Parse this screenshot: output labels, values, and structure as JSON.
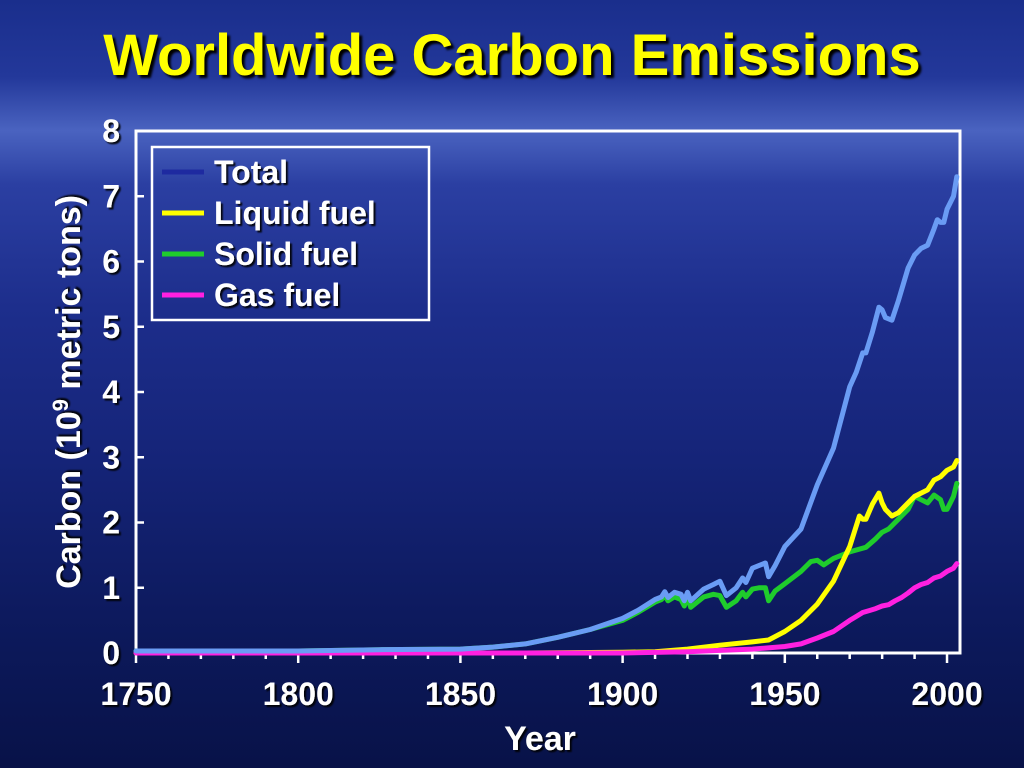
{
  "chart_data": {
    "type": "line",
    "title": "Worldwide Carbon Emissions",
    "xlabel": "Year",
    "ylabel": "Carbon (10",
    "ylabel_sup": "9",
    "ylabel_suffix": " metric tons)",
    "xlim": [
      1750,
      2004
    ],
    "ylim": [
      0,
      8
    ],
    "x_ticks": [
      "1750",
      "1800",
      "1850",
      "1900",
      "1950",
      "2000"
    ],
    "y_ticks": [
      "0",
      "1",
      "2",
      "3",
      "4",
      "5",
      "6",
      "7",
      "8"
    ],
    "grid": false,
    "legend_position": "top-left",
    "series": [
      {
        "name": "Total",
        "color": "#6a9cf4",
        "legend_color": "#1e2aa0",
        "points": [
          [
            1750,
            0.03
          ],
          [
            1800,
            0.03
          ],
          [
            1825,
            0.05
          ],
          [
            1850,
            0.06
          ],
          [
            1860,
            0.09
          ],
          [
            1870,
            0.14
          ],
          [
            1880,
            0.24
          ],
          [
            1890,
            0.36
          ],
          [
            1900,
            0.53
          ],
          [
            1905,
            0.66
          ],
          [
            1910,
            0.82
          ],
          [
            1912,
            0.86
          ],
          [
            1913,
            0.94
          ],
          [
            1914,
            0.85
          ],
          [
            1916,
            0.93
          ],
          [
            1918,
            0.9
          ],
          [
            1919,
            0.8
          ],
          [
            1920,
            0.93
          ],
          [
            1921,
            0.8
          ],
          [
            1925,
            0.98
          ],
          [
            1928,
            1.05
          ],
          [
            1930,
            1.1
          ],
          [
            1932,
            0.88
          ],
          [
            1935,
            1.0
          ],
          [
            1937,
            1.15
          ],
          [
            1938,
            1.08
          ],
          [
            1940,
            1.3
          ],
          [
            1942,
            1.34
          ],
          [
            1944,
            1.38
          ],
          [
            1945,
            1.17
          ],
          [
            1947,
            1.34
          ],
          [
            1950,
            1.63
          ],
          [
            1955,
            1.9
          ],
          [
            1960,
            2.58
          ],
          [
            1965,
            3.14
          ],
          [
            1970,
            4.08
          ],
          [
            1972,
            4.3
          ],
          [
            1974,
            4.6
          ],
          [
            1975,
            4.6
          ],
          [
            1977,
            4.92
          ],
          [
            1979,
            5.3
          ],
          [
            1980,
            5.26
          ],
          [
            1981,
            5.14
          ],
          [
            1983,
            5.1
          ],
          [
            1985,
            5.4
          ],
          [
            1988,
            5.9
          ],
          [
            1990,
            6.1
          ],
          [
            1992,
            6.2
          ],
          [
            1994,
            6.25
          ],
          [
            1996,
            6.5
          ],
          [
            1997,
            6.64
          ],
          [
            1998,
            6.6
          ],
          [
            1999,
            6.6
          ],
          [
            2000,
            6.8
          ],
          [
            2002,
            7.0
          ],
          [
            2003,
            7.3
          ]
        ]
      },
      {
        "name": "Liquid fuel",
        "color": "#ffff00",
        "legend_color": "#ffff00",
        "points": [
          [
            1750,
            0.0
          ],
          [
            1870,
            0.0
          ],
          [
            1900,
            0.01
          ],
          [
            1910,
            0.02
          ],
          [
            1920,
            0.06
          ],
          [
            1930,
            0.12
          ],
          [
            1940,
            0.17
          ],
          [
            1945,
            0.2
          ],
          [
            1950,
            0.33
          ],
          [
            1955,
            0.5
          ],
          [
            1960,
            0.75
          ],
          [
            1965,
            1.1
          ],
          [
            1970,
            1.63
          ],
          [
            1973,
            2.1
          ],
          [
            1974,
            2.05
          ],
          [
            1975,
            2.05
          ],
          [
            1977,
            2.28
          ],
          [
            1979,
            2.45
          ],
          [
            1980,
            2.3
          ],
          [
            1981,
            2.2
          ],
          [
            1983,
            2.1
          ],
          [
            1985,
            2.15
          ],
          [
            1988,
            2.3
          ],
          [
            1990,
            2.4
          ],
          [
            1992,
            2.45
          ],
          [
            1994,
            2.5
          ],
          [
            1996,
            2.65
          ],
          [
            1998,
            2.7
          ],
          [
            2000,
            2.8
          ],
          [
            2002,
            2.85
          ],
          [
            2003,
            2.95
          ]
        ]
      },
      {
        "name": "Solid fuel",
        "color": "#1fcc2c",
        "legend_color": "#1fcc2c",
        "points": [
          [
            1750,
            0.03
          ],
          [
            1800,
            0.03
          ],
          [
            1825,
            0.05
          ],
          [
            1850,
            0.06
          ],
          [
            1860,
            0.09
          ],
          [
            1870,
            0.14
          ],
          [
            1880,
            0.24
          ],
          [
            1890,
            0.36
          ],
          [
            1900,
            0.5
          ],
          [
            1905,
            0.63
          ],
          [
            1910,
            0.78
          ],
          [
            1912,
            0.82
          ],
          [
            1913,
            0.88
          ],
          [
            1914,
            0.8
          ],
          [
            1916,
            0.86
          ],
          [
            1918,
            0.82
          ],
          [
            1919,
            0.72
          ],
          [
            1920,
            0.86
          ],
          [
            1921,
            0.7
          ],
          [
            1925,
            0.86
          ],
          [
            1928,
            0.9
          ],
          [
            1930,
            0.88
          ],
          [
            1932,
            0.7
          ],
          [
            1935,
            0.8
          ],
          [
            1937,
            0.93
          ],
          [
            1938,
            0.86
          ],
          [
            1940,
            0.98
          ],
          [
            1942,
            1.0
          ],
          [
            1944,
            1.0
          ],
          [
            1945,
            0.8
          ],
          [
            1947,
            0.95
          ],
          [
            1950,
            1.06
          ],
          [
            1955,
            1.25
          ],
          [
            1958,
            1.4
          ],
          [
            1960,
            1.42
          ],
          [
            1962,
            1.35
          ],
          [
            1965,
            1.45
          ],
          [
            1970,
            1.55
          ],
          [
            1975,
            1.62
          ],
          [
            1978,
            1.75
          ],
          [
            1980,
            1.85
          ],
          [
            1982,
            1.9
          ],
          [
            1985,
            2.05
          ],
          [
            1988,
            2.2
          ],
          [
            1990,
            2.4
          ],
          [
            1992,
            2.35
          ],
          [
            1994,
            2.3
          ],
          [
            1996,
            2.42
          ],
          [
            1998,
            2.35
          ],
          [
            1999,
            2.2
          ],
          [
            2000,
            2.2
          ],
          [
            2001,
            2.3
          ],
          [
            2002,
            2.4
          ],
          [
            2003,
            2.6
          ]
        ]
      },
      {
        "name": "Gas fuel",
        "color": "#ff20e0",
        "legend_color": "#ff20e0",
        "points": [
          [
            1750,
            0.0
          ],
          [
            1880,
            0.0
          ],
          [
            1900,
            0.0
          ],
          [
            1920,
            0.02
          ],
          [
            1930,
            0.04
          ],
          [
            1940,
            0.06
          ],
          [
            1950,
            0.1
          ],
          [
            1955,
            0.14
          ],
          [
            1960,
            0.23
          ],
          [
            1965,
            0.33
          ],
          [
            1970,
            0.5
          ],
          [
            1972,
            0.56
          ],
          [
            1974,
            0.62
          ],
          [
            1976,
            0.65
          ],
          [
            1978,
            0.68
          ],
          [
            1980,
            0.72
          ],
          [
            1982,
            0.74
          ],
          [
            1984,
            0.8
          ],
          [
            1986,
            0.85
          ],
          [
            1988,
            0.92
          ],
          [
            1990,
            1.0
          ],
          [
            1992,
            1.05
          ],
          [
            1994,
            1.08
          ],
          [
            1996,
            1.15
          ],
          [
            1998,
            1.18
          ],
          [
            2000,
            1.25
          ],
          [
            2002,
            1.3
          ],
          [
            2003,
            1.37
          ]
        ]
      }
    ]
  }
}
